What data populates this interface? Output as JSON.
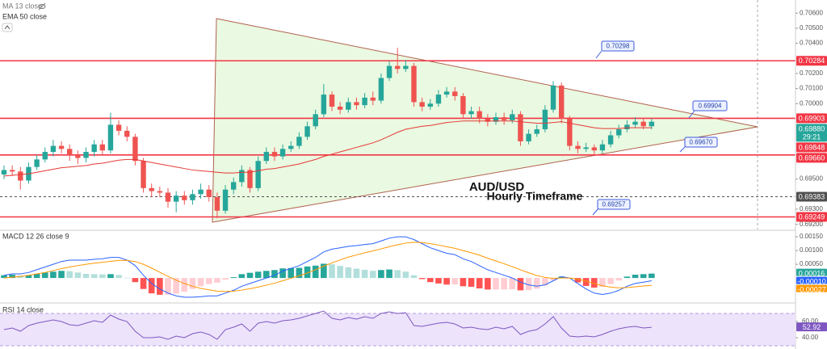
{
  "chart_data": [
    {
      "type": "candlestick",
      "title": "AUD/USD",
      "subtitle": "Hourly Timeframe",
      "hidden_indicators": [
        "MA 13 close"
      ],
      "up_color": "#26a69a",
      "down_color": "#ef5350",
      "open": [
        0.6953,
        0.6956,
        0.6955,
        0.6949,
        0.6958,
        0.6963,
        0.6968,
        0.6972,
        0.697,
        0.6966,
        0.6964,
        0.6968,
        0.6973,
        0.6969,
        0.6986,
        0.6982,
        0.6978,
        0.6962,
        0.6944,
        0.6942,
        0.6941,
        0.6935,
        0.6939,
        0.6936,
        0.694,
        0.6943,
        0.6938,
        0.6929,
        0.6943,
        0.6948,
        0.6956,
        0.6944,
        0.6962,
        0.6968,
        0.6965,
        0.697,
        0.6972,
        0.6978,
        0.6985,
        0.6993,
        0.7006,
        0.6998,
        0.6996,
        0.7001,
        0.6999,
        0.7004,
        0.7002,
        0.7017,
        0.7025,
        0.7023,
        0.7025,
        0.7001,
        0.6998,
        0.7,
        0.7006,
        0.7008,
        0.7005,
        0.6993,
        0.6995,
        0.699,
        0.6988,
        0.6991,
        0.6989,
        0.6993,
        0.6975,
        0.698,
        0.6983,
        0.6996,
        0.7012,
        0.699,
        0.6972,
        0.697,
        0.6971,
        0.6969,
        0.6973,
        0.6979,
        0.6983,
        0.6986,
        0.6988,
        0.6985
      ],
      "high": [
        0.6959,
        0.6959,
        0.6958,
        0.6961,
        0.6966,
        0.6971,
        0.6976,
        0.6975,
        0.6973,
        0.6969,
        0.6971,
        0.6976,
        0.6976,
        0.6994,
        0.6989,
        0.6985,
        0.698,
        0.6964,
        0.6947,
        0.6945,
        0.6944,
        0.6942,
        0.6942,
        0.6943,
        0.6947,
        0.6946,
        0.6941,
        0.6946,
        0.6951,
        0.6959,
        0.6958,
        0.6965,
        0.6971,
        0.6971,
        0.6973,
        0.6975,
        0.6981,
        0.6988,
        0.6996,
        0.7013,
        0.7008,
        0.7001,
        0.7004,
        0.7004,
        0.7007,
        0.7008,
        0.702,
        0.7028,
        0.7037,
        0.7029,
        0.7027,
        0.7004,
        0.7003,
        0.7009,
        0.7011,
        0.7011,
        0.7007,
        0.6998,
        0.6998,
        0.6993,
        0.6994,
        0.6994,
        0.6996,
        0.6995,
        0.6983,
        0.6986,
        0.6999,
        0.7015,
        0.7014,
        0.6992,
        0.6975,
        0.6974,
        0.6973,
        0.6976,
        0.6982,
        0.6986,
        0.6989,
        0.6991,
        0.699,
        0.699
      ],
      "low": [
        0.695,
        0.6952,
        0.6943,
        0.6947,
        0.6956,
        0.6961,
        0.6965,
        0.6967,
        0.6962,
        0.696,
        0.6961,
        0.6965,
        0.6966,
        0.6967,
        0.6979,
        0.6975,
        0.6959,
        0.6941,
        0.6938,
        0.6938,
        0.6931,
        0.6928,
        0.6933,
        0.6933,
        0.6937,
        0.6935,
        0.6924,
        0.6927,
        0.694,
        0.6945,
        0.6941,
        0.6942,
        0.696,
        0.6962,
        0.6963,
        0.6968,
        0.697,
        0.6976,
        0.6983,
        0.6991,
        0.6995,
        0.6993,
        0.6994,
        0.6996,
        0.6997,
        0.6999,
        0.7,
        0.7015,
        0.702,
        0.7021,
        0.6998,
        0.6995,
        0.6996,
        0.6998,
        0.7004,
        0.7002,
        0.699,
        0.699,
        0.6987,
        0.6985,
        0.6986,
        0.6986,
        0.6987,
        0.6972,
        0.6973,
        0.6978,
        0.6981,
        0.6994,
        0.6987,
        0.6969,
        0.6967,
        0.6968,
        0.6966,
        0.6967,
        0.6971,
        0.6977,
        0.6981,
        0.6984,
        0.6983,
        0.6983
      ],
      "close": [
        0.6956,
        0.6955,
        0.6949,
        0.6958,
        0.6963,
        0.6968,
        0.6972,
        0.697,
        0.6966,
        0.6964,
        0.6968,
        0.6973,
        0.6969,
        0.6986,
        0.6982,
        0.6978,
        0.6962,
        0.6944,
        0.6942,
        0.6941,
        0.6935,
        0.6939,
        0.6936,
        0.694,
        0.6943,
        0.6938,
        0.6929,
        0.6943,
        0.6948,
        0.6956,
        0.6944,
        0.6962,
        0.6968,
        0.6965,
        0.697,
        0.6972,
        0.6978,
        0.6985,
        0.6993,
        0.7006,
        0.6998,
        0.6996,
        0.7001,
        0.6999,
        0.7004,
        0.7002,
        0.7017,
        0.7025,
        0.7023,
        0.7025,
        0.7001,
        0.6998,
        0.7,
        0.7006,
        0.7008,
        0.7005,
        0.6993,
        0.6995,
        0.699,
        0.6988,
        0.6991,
        0.6989,
        0.6993,
        0.6975,
        0.698,
        0.6983,
        0.6996,
        0.7012,
        0.699,
        0.6972,
        0.697,
        0.6971,
        0.6969,
        0.6973,
        0.6979,
        0.6983,
        0.6986,
        0.6988,
        0.6985,
        0.6988
      ],
      "series": [
        {
          "name": "EMA 50 close",
          "color": "#e53935",
          "values": [
            0.6952,
            0.69525,
            0.6953,
            0.69535,
            0.69545,
            0.69555,
            0.69565,
            0.69575,
            0.6958,
            0.69585,
            0.6959,
            0.696,
            0.69605,
            0.69615,
            0.69625,
            0.6963,
            0.6963,
            0.6962,
            0.6961,
            0.696,
            0.6959,
            0.6958,
            0.6957,
            0.6956,
            0.69555,
            0.6955,
            0.69545,
            0.6954,
            0.6954,
            0.69545,
            0.69545,
            0.69555,
            0.69565,
            0.6957,
            0.6958,
            0.6959,
            0.696,
            0.69615,
            0.6963,
            0.6965,
            0.69665,
            0.6968,
            0.69695,
            0.6971,
            0.69725,
            0.6974,
            0.6976,
            0.69785,
            0.6981,
            0.6983,
            0.6984,
            0.6985,
            0.69855,
            0.69865,
            0.69875,
            0.6988,
            0.69885,
            0.69885,
            0.69885,
            0.69885,
            0.69885,
            0.69885,
            0.69885,
            0.6988,
            0.69875,
            0.6987,
            0.6987,
            0.69875,
            0.6988,
            0.6987,
            0.6986,
            0.6985,
            0.6984,
            0.69835,
            0.69835,
            0.69835,
            0.6984,
            0.6984,
            0.6984,
            0.6984
          ]
        }
      ],
      "ylim": [
        0.69166,
        0.70671
      ],
      "yticks": [
        {
          "value": 0.706,
          "label": "0.70600"
        },
        {
          "value": 0.705,
          "label": "0.70500"
        },
        {
          "value": 0.704,
          "label": "0.70400"
        },
        {
          "value": 0.702,
          "label": "0.70200"
        },
        {
          "value": 0.701,
          "label": "0.70100"
        },
        {
          "value": 0.7,
          "label": "0.70000"
        },
        {
          "value": 0.695,
          "label": "0.69500"
        },
        {
          "value": 0.693,
          "label": "0.69300"
        },
        {
          "value": 0.692,
          "label": "0.69200"
        }
      ],
      "price_labels": [
        {
          "value": 0.70284,
          "label": "0.70284",
          "color": "#f23645",
          "line": "solid"
        },
        {
          "value": 0.69903,
          "label": "0.69903",
          "color": "#f23645",
          "line": "solid"
        },
        {
          "value": 0.6988,
          "label": "0.69880",
          "color": "#26a69a",
          "countdown": "29:21"
        },
        {
          "value": 0.69848,
          "label": "0.69848",
          "color": "#f23645"
        },
        {
          "value": 0.6966,
          "label": "0.69660",
          "color": "#f23645",
          "line": "solid"
        },
        {
          "value": 0.69383,
          "label": "0.69383",
          "color": "#505050",
          "line": "dashed"
        },
        {
          "value": 0.69249,
          "label": "0.69249",
          "color": "#f23645",
          "line": "solid"
        }
      ],
      "annotations": [
        {
          "value": 0.70298,
          "label": "0.70298"
        },
        {
          "value": 0.69904,
          "label": "0.69904"
        },
        {
          "value": 0.6967,
          "label": "0.69670"
        },
        {
          "value": 0.69257,
          "label": "0.69257"
        }
      ]
    },
    {
      "type": "macd",
      "title": "MACD 12 26 close 9",
      "histogram": [
        0.0001,
        0.00012,
        9e-05,
        0.0001,
        0.00015,
        0.0002,
        0.00023,
        0.00026,
        0.00025,
        0.0002,
        0.00015,
        0.00014,
        0.00013,
        0.00014,
        0.00011,
        1e-05,
        -0.00015,
        -0.0004,
        -0.00056,
        -0.00061,
        -0.00061,
        -0.00057,
        -0.0005,
        -0.0004,
        -0.0003,
        -0.00022,
        -0.00017,
        -6e-05,
        3e-05,
        0.00014,
        0.00019,
        0.00023,
        0.00026,
        0.00029,
        0.00035,
        0.00036,
        0.00037,
        0.00042,
        0.00045,
        0.00052,
        0.0005,
        0.00044,
        0.00039,
        0.00034,
        0.0003,
        0.00026,
        0.00029,
        0.00031,
        0.00029,
        0.00023,
        0.0001,
        -4e-05,
        -0.00015,
        -0.0002,
        -0.00024,
        -0.00023,
        -0.0003,
        -0.00032,
        -0.00038,
        -0.00042,
        -0.00042,
        -0.00042,
        -0.00041,
        -0.00045,
        -0.00044,
        -0.00039,
        -0.00027,
        -9e-05,
        5e-05,
        0.0,
        -0.00016,
        -0.00029,
        -0.00035,
        -0.00032,
        -0.00022,
        -9e-05,
        5e-05,
        0.00012,
        0.00014,
        0.00016
      ],
      "hist_colors": [
        "#26a69a",
        "#b2dfdb",
        "#ffcdd2",
        "#ff5252"
      ],
      "hist_last_label": "0.00016",
      "series": [
        {
          "color": "#2962ff",
          "last_label": "-0.00010",
          "values": [
            0.0001,
            0.00015,
            0.00015,
            0.0002,
            0.0003,
            0.0004,
            0.0005,
            0.0006,
            0.00065,
            0.00065,
            0.00065,
            0.00068,
            0.0007,
            0.00075,
            0.00075,
            0.00065,
            0.00045,
            0.0001,
            -0.0002,
            -0.0004,
            -0.00055,
            -0.00065,
            -0.0007,
            -0.0007,
            -0.00068,
            -0.00065,
            -0.00065,
            -0.00055,
            -0.00045,
            -0.0003,
            -0.0002,
            -0.0001,
            0.0,
            0.0001,
            0.00025,
            0.00035,
            0.00045,
            0.0006,
            0.00075,
            0.00095,
            0.00105,
            0.0011,
            0.00115,
            0.00118,
            0.00122,
            0.00125,
            0.00135,
            0.00145,
            0.0015,
            0.0015,
            0.0014,
            0.00125,
            0.0011,
            0.001,
            0.0009,
            0.00085,
            0.0007,
            0.0006,
            0.00045,
            0.0003,
            0.0002,
            0.0001,
            0.0,
            -0.00015,
            -0.00025,
            -0.0003,
            -0.00025,
            -0.0001,
            5e-05,
            0.0,
            -0.0002,
            -0.0004,
            -0.00055,
            -0.0006,
            -0.00055,
            -0.00045,
            -0.0003,
            -0.0002,
            -0.00015,
            -0.0001
          ]
        },
        {
          "color": "#ff9800",
          "last_label": "-0.00027",
          "values": [
            0.0,
            3e-05,
            6e-05,
            0.0001,
            0.00015,
            0.0002,
            0.00027,
            0.00034,
            0.0004,
            0.00045,
            0.0005,
            0.00054,
            0.00057,
            0.00061,
            0.00064,
            0.00064,
            0.0006,
            0.0005,
            0.00036,
            0.00021,
            6e-05,
            -8e-05,
            -0.0002,
            -0.0003,
            -0.00038,
            -0.00043,
            -0.00048,
            -0.00049,
            -0.00048,
            -0.00044,
            -0.00039,
            -0.00033,
            -0.00026,
            -0.00019,
            -0.0001,
            -1e-05,
            8e-05,
            0.00018,
            0.0003,
            0.00043,
            0.00055,
            0.00066,
            0.00076,
            0.00084,
            0.00092,
            0.00099,
            0.00106,
            0.00114,
            0.00121,
            0.00127,
            0.0013,
            0.00129,
            0.00125,
            0.0012,
            0.00114,
            0.00108,
            0.001,
            0.00092,
            0.00083,
            0.00072,
            0.00062,
            0.00052,
            0.00041,
            0.0003,
            0.00019,
            9e-05,
            2e-05,
            -1e-05,
            0.0,
            0.0,
            -4e-05,
            -0.00011,
            -0.0002,
            -0.00028,
            -0.00033,
            -0.00036,
            -0.00035,
            -0.00032,
            -0.00029,
            -0.00027
          ]
        }
      ],
      "ylim": [
        -0.00085,
        0.00168
      ],
      "yticks": [
        {
          "value": 0.0015,
          "label": "0.00150"
        },
        {
          "value": 0.001,
          "label": "0.00100"
        },
        {
          "value": 0.0005,
          "label": "0.00050"
        }
      ]
    },
    {
      "type": "rsi",
      "title": "RSI 14 close",
      "color": "#7e57c2",
      "band": [
        30,
        70
      ],
      "band_color": "#ede3fb",
      "values": [
        50,
        52,
        48,
        55,
        58,
        60,
        62,
        60,
        56,
        55,
        58,
        61,
        59,
        68,
        63,
        60,
        48,
        40,
        40,
        41,
        38,
        42,
        40,
        45,
        47,
        44,
        38,
        50,
        53,
        57,
        48,
        58,
        60,
        58,
        61,
        62,
        64,
        67,
        70,
        73,
        64,
        62,
        65,
        63,
        66,
        64,
        70,
        72,
        70,
        71,
        55,
        54,
        56,
        58,
        59,
        57,
        52,
        53,
        51,
        50,
        53,
        51,
        54,
        44,
        48,
        50,
        57,
        66,
        52,
        42,
        41,
        42,
        41,
        44,
        48,
        51,
        53,
        54,
        52,
        52.92
      ],
      "last_label": "52.92",
      "ylim": [
        26,
        81
      ],
      "yticks": [
        {
          "value": 60,
          "label": "60.00"
        },
        {
          "value": 40,
          "label": "40.00"
        }
      ]
    }
  ]
}
